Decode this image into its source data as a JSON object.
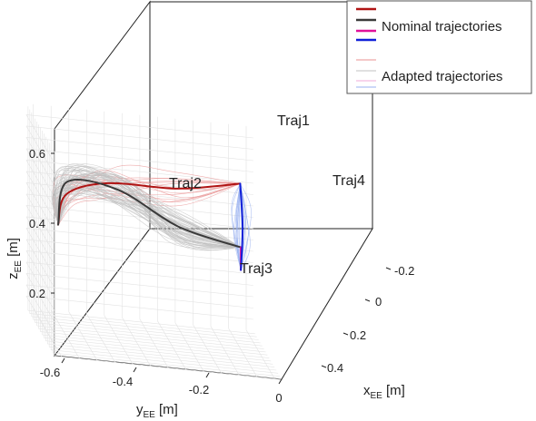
{
  "chart_data": {
    "type": "line",
    "projection": "3d",
    "grid": true,
    "legend_position": "top-right",
    "axes": {
      "x": {
        "label": "x",
        "label_sub": "EE",
        "label_unit": " [m]",
        "ticks": [
          "-0.2",
          "0",
          "0.2",
          "0.4"
        ],
        "range": [
          -0.25,
          0.55
        ]
      },
      "y": {
        "label": "y",
        "label_sub": "EE",
        "label_unit": " [m]",
        "ticks": [
          "-0.6",
          "-0.4",
          "-0.2",
          "0"
        ],
        "range": [
          -0.62,
          0.02
        ]
      },
      "z": {
        "label": "z",
        "label_sub": "EE",
        "label_unit": " [m]",
        "ticks": [
          "0.2",
          "0.4",
          "0.6"
        ],
        "range": [
          0.05,
          0.95
        ]
      }
    },
    "legend": [
      {
        "label": "Nominal trajectories",
        "colors": [
          "#b01414",
          "#3a3a3a",
          "#e0109a",
          "#1020d8"
        ]
      },
      {
        "label": "Adapted trajectories",
        "colors": [
          "#e89090",
          "#c0c0c0",
          "#f0a8d8",
          "#98b0f0"
        ]
      }
    ],
    "annotations": [
      "Traj1",
      "Traj2",
      "Traj3",
      "Traj4"
    ],
    "series": [
      {
        "name": "Traj1",
        "color": "#b01414",
        "points": [
          {
            "x": -0.05,
            "y": -0.55,
            "z": 0.48
          },
          {
            "x": -0.12,
            "y": -0.52,
            "z": 0.6
          },
          {
            "x": -0.15,
            "y": -0.4,
            "z": 0.66
          },
          {
            "x": -0.18,
            "y": -0.2,
            "z": 0.66
          },
          {
            "x": -0.22,
            "y": -0.02,
            "z": 0.7
          }
        ]
      },
      {
        "name": "Traj2",
        "color": "#3a3a3a",
        "points": [
          {
            "x": -0.05,
            "y": -0.55,
            "z": 0.48
          },
          {
            "x": -0.1,
            "y": -0.52,
            "z": 0.66
          },
          {
            "x": -0.05,
            "y": -0.38,
            "z": 0.66
          },
          {
            "x": 0.05,
            "y": -0.22,
            "z": 0.55
          },
          {
            "x": 0.1,
            "y": -0.05,
            "z": 0.5
          }
        ]
      },
      {
        "name": "Traj3",
        "color": "#e0109a",
        "points": [
          {
            "x": 0.1,
            "y": -0.05,
            "z": 0.5
          },
          {
            "x": 0.1,
            "y": -0.05,
            "z": 0.4
          }
        ]
      },
      {
        "name": "Traj4",
        "color": "#1020d8",
        "points": [
          {
            "x": 0.1,
            "y": -0.05,
            "z": 0.4
          },
          {
            "x": -0.05,
            "y": -0.03,
            "z": 0.55
          },
          {
            "x": -0.22,
            "y": -0.02,
            "z": 0.7
          }
        ]
      }
    ]
  }
}
